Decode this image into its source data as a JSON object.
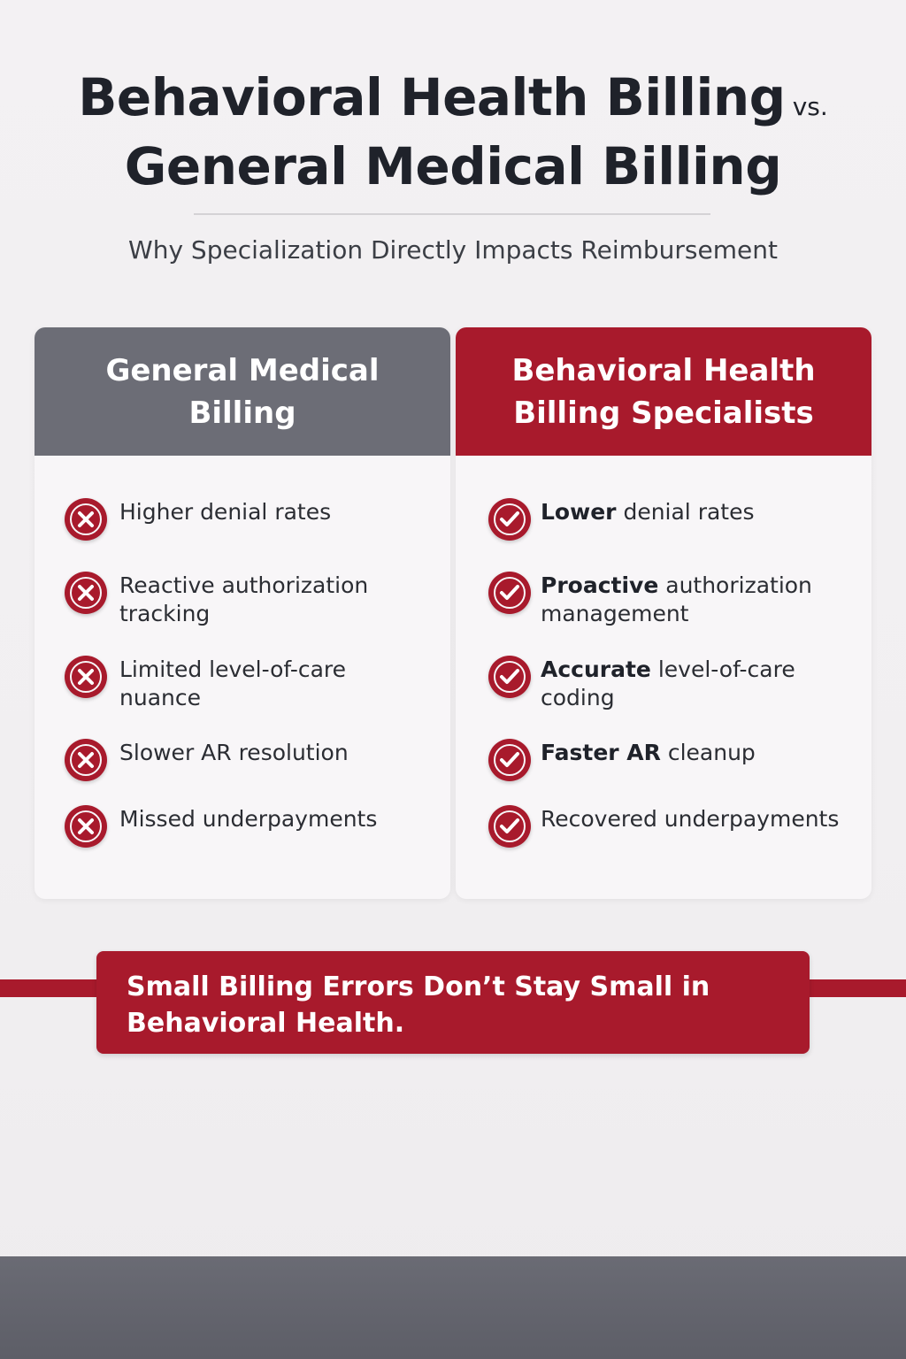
{
  "title": {
    "line1": "Behavioral Health Billing",
    "vs": "vs.",
    "line2": "General Medical Billing"
  },
  "subtitle": "Why Specialization Directly Impacts Reimbursement",
  "colors": {
    "accent_red": "#a81a2c",
    "header_gray": "#6c6d76",
    "footer_gray": "#5d5e67"
  },
  "left_column": {
    "heading": "General Medical Billing",
    "icon": "x-circle-icon",
    "items": [
      {
        "bold": "",
        "text": "Higher denial rates"
      },
      {
        "bold": "",
        "text": "Reactive authorization tracking"
      },
      {
        "bold": "",
        "text": "Limited level-of-care nuance"
      },
      {
        "bold": "",
        "text": "Slower AR resolution"
      },
      {
        "bold": "",
        "text": "Missed underpayments"
      }
    ]
  },
  "right_column": {
    "heading": "Behavioral Health Billing Specialists",
    "icon": "check-circle-icon",
    "items": [
      {
        "bold": "Lower",
        "text": " denial rates"
      },
      {
        "bold": "Proactive",
        "text": " authorization management"
      },
      {
        "bold": "Accurate",
        "text": " level-of-care coding"
      },
      {
        "bold": "Faster AR",
        "text": " cleanup"
      },
      {
        "bold": "",
        "text": "Recovered underpayments"
      }
    ]
  },
  "banner": {
    "text": "Small Billing Errors Don’t Stay Small in Behavioral Health."
  }
}
